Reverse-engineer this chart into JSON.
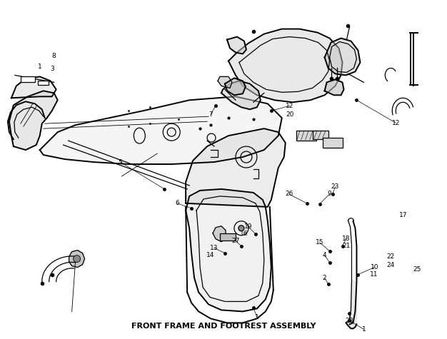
{
  "title": "FRONT FRAME AND FOOTREST ASSEMBLY",
  "background_color": "#ffffff",
  "fig_width": 6.26,
  "fig_height": 4.75,
  "dpi": 100,
  "line_color": "#000000",
  "text_color": "#000000",
  "label_fontsize": 6.5,
  "title_fontsize": 8,
  "gray_fill": "#c8c8c8",
  "light_fill": "#e8e8e8"
}
